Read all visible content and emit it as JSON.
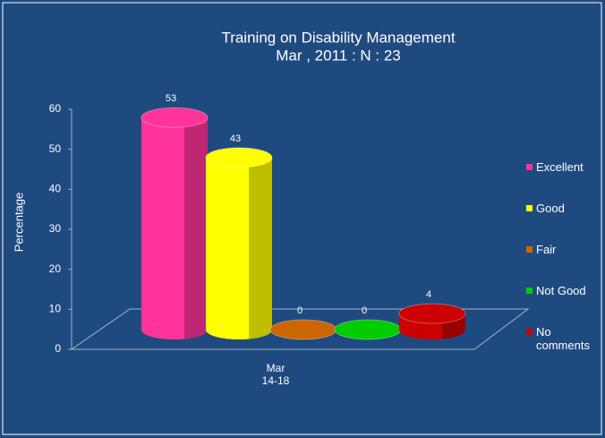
{
  "chart_data": {
    "type": "cylinder-bar",
    "title": "Training on Disability Management",
    "subtitle": "Mar , 2011 : N : 23",
    "y_label": "Percentage",
    "categories": [
      "Mar\n14-18"
    ],
    "series": [
      {
        "name": "Excellent",
        "color": "#ff3399",
        "values": [
          53
        ]
      },
      {
        "name": "Good",
        "color": "#ffff00",
        "values": [
          43
        ]
      },
      {
        "name": "Fair",
        "color": "#cc6600",
        "values": [
          0
        ]
      },
      {
        "name": "Not Good",
        "color": "#00cc00",
        "values": [
          0
        ]
      },
      {
        "name": "No comments",
        "color": "#cc0000",
        "values": [
          4
        ]
      }
    ],
    "ylim": [
      0,
      60
    ],
    "yticks": [
      0,
      10,
      20,
      30,
      40,
      50,
      60
    ]
  }
}
